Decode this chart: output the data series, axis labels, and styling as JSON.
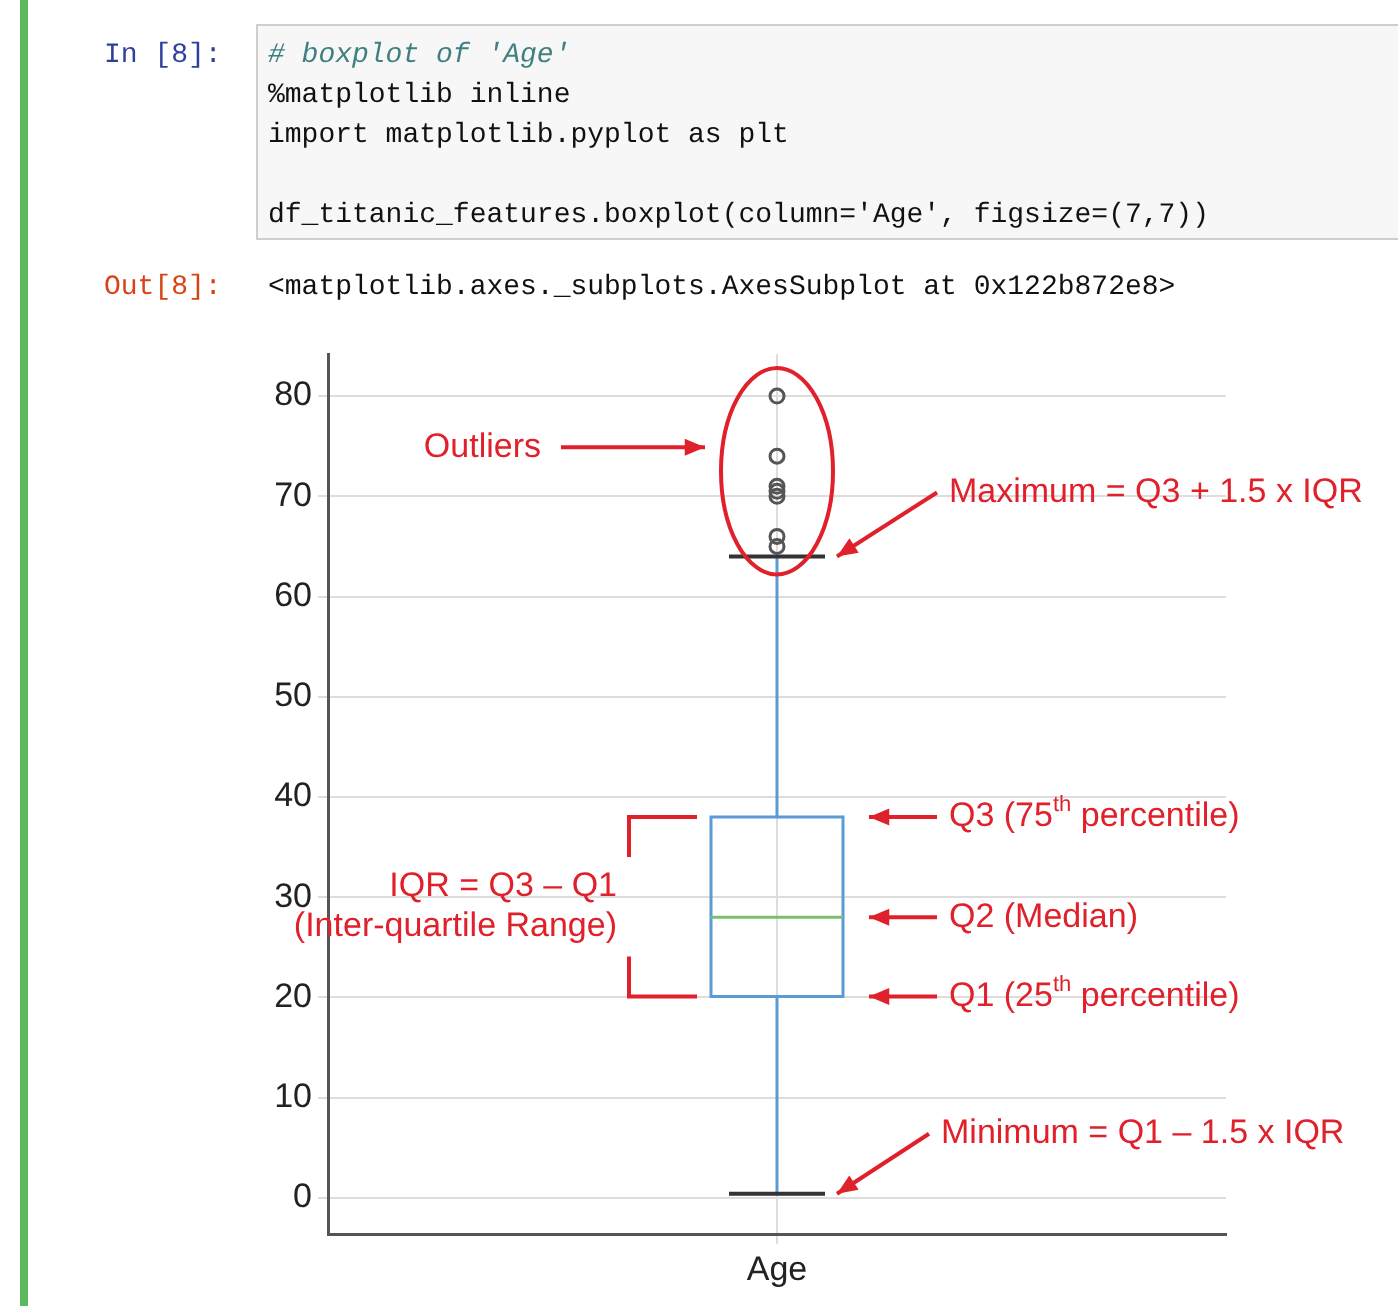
{
  "chart_data": {
    "type": "box",
    "categories": [
      "Age"
    ],
    "series": [
      {
        "color": "#5b9bd5",
        "boxes": [
          {
            "low": 0.42,
            "q1": 20.1,
            "median": 28,
            "q3": 38,
            "high": 64,
            "outliers": [
              65,
              66,
              70,
              70.5,
              71,
              74,
              80
            ]
          }
        ]
      }
    ],
    "ylim": [
      -3.6,
      84.2
    ],
    "yticks": [
      0,
      10,
      20,
      30,
      40,
      50,
      60,
      70,
      80
    ],
    "grid": true,
    "legend": false,
    "marker": "circle",
    "annotations": [
      "In [8]:",
      "# boxplot of 'Age'",
      "%matplotlib inline",
      "import matplotlib.pyplot as plt",
      "df_titanic_features.boxplot(column='Age', figsize=(7,7))",
      "Out[8]:",
      "<matplotlib.axes._subplots.AxesSubplot at 0x122b872e8>",
      "Outliers",
      "IQR = Q3 – Q1",
      "(Inter-quartile Range)",
      "Maximum = Q3 + 1.5 x IQR",
      "Q3 (75$^{th}$ percentile)",
      "Q2 (Median)",
      "Q1 (25$^{th}$ percentile)",
      "Minimum = Q1 – 1.5 x IQR"
    ]
  }
}
